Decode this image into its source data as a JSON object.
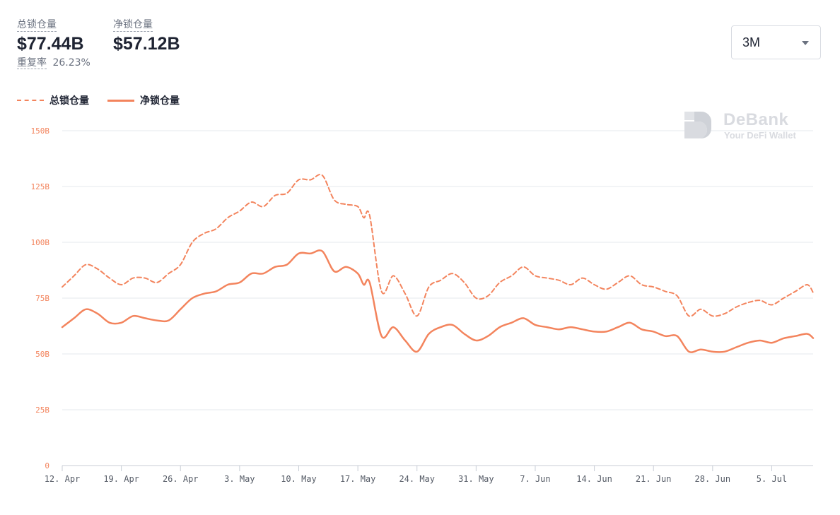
{
  "header": {
    "total_label": "总锁仓量",
    "total_value": "$77.44B",
    "net_label": "净锁仓量",
    "net_value": "$57.12B",
    "rate_label": "重复率",
    "rate_value": "26.23%"
  },
  "range_selector": {
    "selected": "3M"
  },
  "watermark": {
    "name": "DeBank",
    "tagline": "Your DeFi Wallet"
  },
  "colors": {
    "series": "#f3845d",
    "grid": "#e6e8ec",
    "axis": "#c8cdd6",
    "text": "#1f2433"
  },
  "chart_data": {
    "type": "line",
    "ylim": [
      0,
      150
    ],
    "y_ticks": [
      {
        "value": 0,
        "label": "0"
      },
      {
        "value": 25,
        "label": "25B"
      },
      {
        "value": 50,
        "label": "50B"
      },
      {
        "value": 75,
        "label": "75B"
      },
      {
        "value": 100,
        "label": "100B"
      },
      {
        "value": 125,
        "label": "125B"
      },
      {
        "value": 150,
        "label": "150B"
      }
    ],
    "x_range": [
      0,
      127
    ],
    "x_ticks": [
      {
        "day": 0,
        "label": "12. Apr"
      },
      {
        "day": 10,
        "label": "19. Apr"
      },
      {
        "day": 20,
        "label": "26. Apr"
      },
      {
        "day": 30,
        "label": "3. May"
      },
      {
        "day": 40,
        "label": "10. May"
      },
      {
        "day": 50,
        "label": "17. May"
      },
      {
        "day": 60,
        "label": "24. May"
      },
      {
        "day": 70,
        "label": "31. May"
      },
      {
        "day": 80,
        "label": "7. Jun"
      },
      {
        "day": 90,
        "label": "14. Jun"
      },
      {
        "day": 100,
        "label": "21. Jun"
      },
      {
        "day": 110,
        "label": "28. Jun"
      },
      {
        "day": 120,
        "label": "5. Jul"
      }
    ],
    "grid": true,
    "legend": "top-left",
    "series": [
      {
        "name": "总锁仓量",
        "style": "dashed",
        "x": [
          0,
          2,
          4,
          6,
          8,
          10,
          12,
          14,
          16,
          18,
          20,
          22,
          24,
          26,
          28,
          30,
          32,
          34,
          36,
          38,
          40,
          42,
          44,
          46,
          48,
          50,
          51,
          52,
          54,
          56,
          58,
          60,
          62,
          64,
          66,
          68,
          70,
          72,
          74,
          76,
          78,
          80,
          82,
          84,
          86,
          88,
          90,
          92,
          94,
          96,
          98,
          100,
          102,
          104,
          106,
          108,
          110,
          112,
          114,
          116,
          118,
          120,
          122,
          124,
          126,
          127
        ],
        "y": [
          80,
          85,
          90,
          88,
          84,
          81,
          84,
          84,
          82,
          86,
          90,
          100,
          104,
          106,
          111,
          114,
          118,
          116,
          121,
          122,
          128,
          128,
          130,
          119,
          117,
          116,
          111,
          112,
          78,
          85,
          77,
          67,
          80,
          83,
          86,
          82,
          75,
          76,
          82,
          85,
          89,
          85,
          84,
          83,
          81,
          84,
          81,
          79,
          82,
          85,
          81,
          80,
          78,
          76,
          67,
          70,
          67,
          68,
          71,
          73,
          74,
          72,
          75,
          78,
          81,
          77.5
        ]
      },
      {
        "name": "净锁仓量",
        "style": "solid",
        "x": [
          0,
          2,
          4,
          6,
          8,
          10,
          12,
          14,
          16,
          18,
          20,
          22,
          24,
          26,
          28,
          30,
          32,
          34,
          36,
          38,
          40,
          42,
          44,
          46,
          48,
          50,
          51,
          52,
          54,
          56,
          58,
          60,
          62,
          64,
          66,
          68,
          70,
          72,
          74,
          76,
          78,
          80,
          82,
          84,
          86,
          88,
          90,
          92,
          94,
          96,
          98,
          100,
          102,
          104,
          106,
          108,
          110,
          112,
          114,
          116,
          118,
          120,
          122,
          124,
          126,
          127
        ],
        "y": [
          62,
          66,
          70,
          68,
          64,
          64,
          67,
          66,
          65,
          65,
          70,
          75,
          77,
          78,
          81,
          82,
          86,
          86,
          89,
          90,
          95,
          95,
          96,
          87,
          89,
          86,
          81,
          82,
          58,
          62,
          56,
          51,
          59,
          62,
          63,
          59,
          56,
          58,
          62,
          64,
          66,
          63,
          62,
          61,
          62,
          61,
          60,
          60,
          62,
          64,
          61,
          60,
          58,
          58,
          51,
          52,
          51,
          51,
          53,
          55,
          56,
          55,
          57,
          58,
          59,
          57.1
        ]
      }
    ]
  }
}
